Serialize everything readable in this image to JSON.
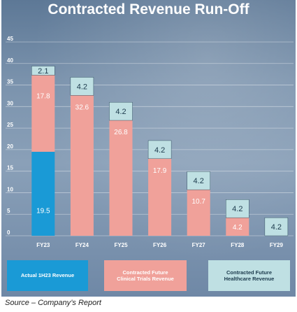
{
  "chart_data": {
    "type": "bar",
    "stacked": true,
    "title": "Contracted Revenue Run-Off",
    "categories": [
      "FY23",
      "FY24",
      "FY25",
      "FY26",
      "FY27",
      "FY28",
      "FY29"
    ],
    "series": [
      {
        "name": "Actual 1H23 Revenue",
        "color": "#1a9ad6",
        "label_color": "#ffffff",
        "values": [
          19.5,
          0,
          0,
          0,
          0,
          0,
          0
        ]
      },
      {
        "name": "Contracted Future\nClinical Trials Revenue",
        "color": "#f0a19a",
        "label_color": "#ffffff",
        "values": [
          17.8,
          32.6,
          26.8,
          17.9,
          10.7,
          4.2,
          0
        ]
      },
      {
        "name": "Contracted Future\nHealthcare Revenue",
        "color": "#bfe0e3",
        "label_color": "#1c3a4c",
        "values": [
          2.1,
          4.2,
          4.2,
          4.2,
          4.2,
          4.2,
          4.2
        ]
      }
    ],
    "yticks": [
      0,
      5,
      10,
      15,
      20,
      25,
      30,
      35,
      40,
      45
    ],
    "ylim": [
      0,
      45
    ],
    "grid": true,
    "legend": "bottom"
  },
  "source": "Source – Company’s Report"
}
